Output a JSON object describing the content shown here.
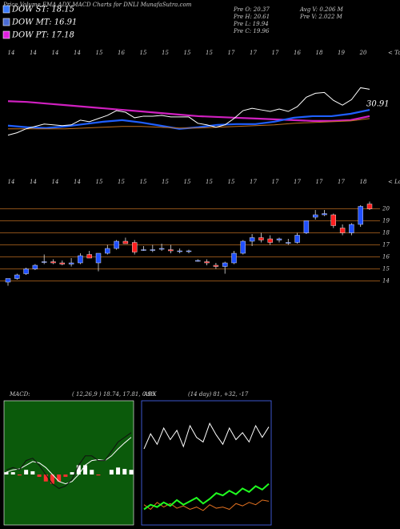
{
  "chart_data": {
    "type": "candlestick",
    "title": "Price,Volume,EMA,ADX,MACD Charts for DNLI MunafaSutra.com",
    "legend": [
      {
        "text": "DOW ST: 18.15",
        "color": "#3a7bff"
      },
      {
        "text": "DOW MT: 16.91",
        "color": "#4a6cd4"
      },
      {
        "text": "DOW PT: 17.18",
        "color": "#e020e0"
      }
    ],
    "info_left": [
      "Pre  O: 20.37",
      "Pre  H: 20.61",
      "Pre  L: 19.94",
      "Pre  C: 19.96"
    ],
    "info_right": [
      "Avg V: 0.206  M",
      "Pre  V: 2.022  M"
    ],
    "tops_label": "< Tops",
    "tops": [
      14,
      14,
      14,
      14,
      15,
      16,
      15,
      15,
      15,
      15,
      17,
      17,
      17,
      16,
      18,
      19,
      20
    ],
    "lows_label": "< Lows",
    "lows": [
      14,
      14,
      14,
      14,
      15,
      15,
      15,
      15,
      15,
      15,
      15,
      17,
      17,
      17,
      17,
      17,
      18
    ],
    "top_annotation": 30.91,
    "top_ylim": [
      10,
      24
    ],
    "ema_series": [
      {
        "color": "#d020c0",
        "values": [
          18.5,
          18.4,
          18.2,
          18.0,
          17.8,
          17.6,
          17.4,
          17.2,
          17.0,
          16.8,
          16.6,
          16.5,
          16.4,
          16.3,
          16.2,
          16.1,
          16.0,
          16.0,
          16.1,
          16.6
        ]
      },
      {
        "color": "#1f5fff",
        "values": [
          15.4,
          15.2,
          15.1,
          15.3,
          15.6,
          15.9,
          16.1,
          15.8,
          15.4,
          15.0,
          15.2,
          15.5,
          15.6,
          15.6,
          15.9,
          16.4,
          16.6,
          16.6,
          16.9,
          17.4
        ]
      },
      {
        "color": "#c07020",
        "values": [
          15.0,
          15.0,
          15.0,
          15.0,
          15.1,
          15.2,
          15.3,
          15.3,
          15.2,
          15.1,
          15.1,
          15.2,
          15.3,
          15.4,
          15.5,
          15.7,
          15.8,
          15.9,
          16.0,
          16.3
        ]
      }
    ],
    "open": [
      13.9,
      14.2,
      14.6,
      15.0,
      15.6,
      15.6,
      15.5,
      15.4,
      15.5,
      16.2,
      15.5,
      16.3,
      16.7,
      17.3,
      17.2,
      16.6,
      16.6,
      16.7,
      16.6,
      16.5,
      16.5,
      15.7,
      15.6,
      15.3,
      15.2,
      15.5,
      16.3,
      17.3,
      17.6,
      17.5,
      17.4,
      17.2,
      17.2,
      18.0,
      19.3,
      19.5,
      19.5,
      18.4,
      18.0,
      18.7,
      20.4
    ],
    "high": [
      14.2,
      14.6,
      15.1,
      15.4,
      16.2,
      15.8,
      15.7,
      15.9,
      16.3,
      16.5,
      16.3,
      17.0,
      17.4,
      17.6,
      17.4,
      16.9,
      17.0,
      17.1,
      17.0,
      16.7,
      16.6,
      15.8,
      15.8,
      15.5,
      15.6,
      16.5,
      17.4,
      17.9,
      18.0,
      17.8,
      17.6,
      17.5,
      18.0,
      19.0,
      19.9,
      19.9,
      19.6,
      18.7,
      18.8,
      20.3,
      20.6
    ],
    "low": [
      13.6,
      14.1,
      14.5,
      14.9,
      15.4,
      15.4,
      15.3,
      15.2,
      15.4,
      15.9,
      14.8,
      16.2,
      16.6,
      17.1,
      16.2,
      16.5,
      16.4,
      16.5,
      16.3,
      16.3,
      16.3,
      15.6,
      15.3,
      15.0,
      14.6,
      15.4,
      16.2,
      16.9,
      17.2,
      17.0,
      17.2,
      17.0,
      17.1,
      17.9,
      19.1,
      19.4,
      18.4,
      17.8,
      17.8,
      18.5,
      19.9
    ],
    "close": [
      14.2,
      14.5,
      15.0,
      15.3,
      15.6,
      15.5,
      15.4,
      15.5,
      16.1,
      15.9,
      16.3,
      16.7,
      17.3,
      17.1,
      16.4,
      16.6,
      16.6,
      16.7,
      16.5,
      16.5,
      16.5,
      15.7,
      15.5,
      15.2,
      15.5,
      16.3,
      17.3,
      17.6,
      17.4,
      17.2,
      17.5,
      17.2,
      17.8,
      19.0,
      19.5,
      19.6,
      18.6,
      18.0,
      18.7,
      20.2,
      20.0
    ],
    "up_color": "#2050ff",
    "down_color": "#ff2020",
    "ylim": [
      12.7,
      21.7
    ],
    "yticks": [
      14,
      15,
      16,
      17,
      18,
      19,
      20
    ],
    "grid": true,
    "macd": {
      "label": "MACD:",
      "params": "( 12,26,9 ) 18.74, 17.81, 0.93",
      "ylim": [
        -1,
        1.5
      ],
      "line": [
        0.1,
        0.15,
        0.1,
        0.3,
        0.35,
        0.2,
        0.0,
        -0.2,
        -0.3,
        -0.25,
        -0.1,
        0.2,
        0.4,
        0.4,
        0.3,
        0.3,
        0.5,
        0.7,
        0.8,
        0.9
      ],
      "signal": [
        0.05,
        0.1,
        0.12,
        0.2,
        0.28,
        0.25,
        0.15,
        0.0,
        -0.15,
        -0.2,
        -0.15,
        0.0,
        0.2,
        0.3,
        0.32,
        0.3,
        0.4,
        0.55,
        0.68,
        0.8
      ],
      "histogram": [
        0.05,
        0.05,
        -0.02,
        0.1,
        0.07,
        -0.05,
        -0.15,
        -0.2,
        -0.15,
        -0.05,
        0.05,
        0.2,
        0.2,
        0.1,
        -0.02,
        0.0,
        0.1,
        0.15,
        0.12,
        0.1
      ]
    },
    "adx": {
      "label": "ADX",
      "params": "(14  day) 81, +32, -17",
      "ylim": [
        0,
        100
      ],
      "adx": [
        62,
        75,
        66,
        80,
        70,
        78,
        64,
        82,
        72,
        68,
        84,
        74,
        66,
        80,
        70,
        76,
        68,
        82,
        72,
        81
      ],
      "plus_di": [
        10,
        14,
        12,
        16,
        13,
        18,
        14,
        17,
        20,
        15,
        19,
        24,
        22,
        26,
        23,
        28,
        25,
        30,
        27,
        32
      ],
      "minus_di": [
        14,
        10,
        16,
        12,
        15,
        11,
        13,
        10,
        12,
        9,
        14,
        11,
        12,
        10,
        15,
        13,
        16,
        14,
        18,
        17
      ]
    }
  }
}
